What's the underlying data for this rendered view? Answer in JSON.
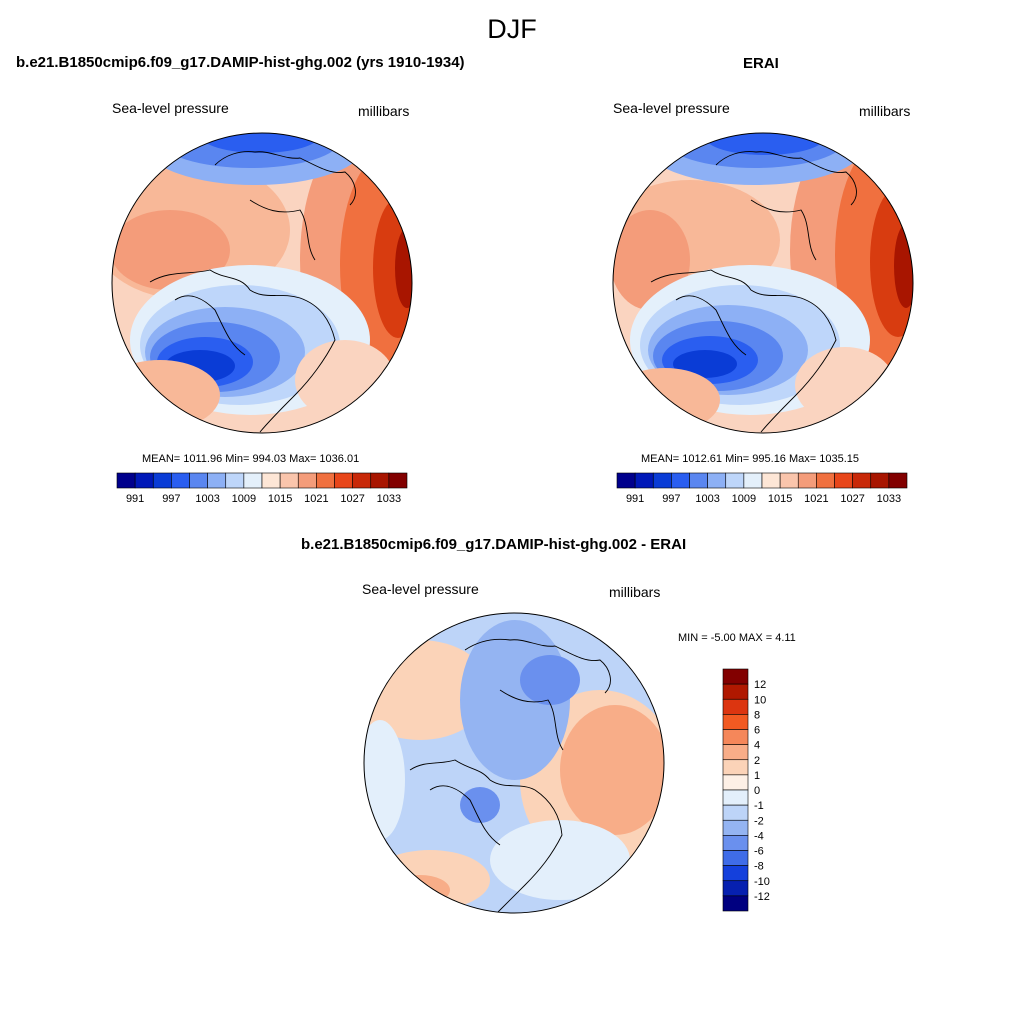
{
  "figure": {
    "title": "DJF",
    "left_panel": {
      "title": "b.e21.B1850cmip6.f09_g17.DAMIP-hist-ghg.002 (yrs 1910-1934)",
      "left_label": "Sea-level pressure",
      "right_label": "millibars",
      "stats": "MEAN= 1011.96  Min= 994.03  Max= 1036.01"
    },
    "right_panel": {
      "title": "ERAI",
      "left_label": "Sea-level pressure",
      "right_label": "millibars",
      "stats": "MEAN= 1012.61  Min= 995.16  Max= 1035.15"
    },
    "diff_panel": {
      "title": "b.e21.B1850cmip6.f09_g17.DAMIP-hist-ghg.002 - ERAI",
      "left_label": "Sea-level pressure",
      "right_label": "millibars",
      "stats": "MIN =  -5.00 MAX =   4.11"
    }
  },
  "chart_data": [
    {
      "type": "heatmap",
      "projection": "north-polar-stereographic",
      "variable": "Sea-level pressure",
      "units": "millibars",
      "mean": 1011.96,
      "min": 994.03,
      "max": 1036.01,
      "colorbar": {
        "orientation": "horizontal",
        "colors": [
          "#00008c",
          "#0018b8",
          "#0a3cd6",
          "#2a5ef0",
          "#5a86f0",
          "#8db0f5",
          "#bed6fa",
          "#e4f0fb",
          "#fde6d6",
          "#fac5ac",
          "#f49c7a",
          "#f0703f",
          "#e8461a",
          "#c82808",
          "#a81500",
          "#820000"
        ],
        "tick_labels": [
          "991",
          "997",
          "1003",
          "1009",
          "1015",
          "1021",
          "1027",
          "1033"
        ]
      }
    },
    {
      "type": "heatmap",
      "projection": "north-polar-stereographic",
      "variable": "Sea-level pressure",
      "units": "millibars",
      "mean": 1012.61,
      "min": 995.16,
      "max": 1035.15,
      "colorbar": {
        "orientation": "horizontal",
        "colors": [
          "#00008c",
          "#0018b8",
          "#0a3cd6",
          "#2a5ef0",
          "#5a86f0",
          "#8db0f5",
          "#bed6fa",
          "#e4f0fb",
          "#fde6d6",
          "#fac5ac",
          "#f49c7a",
          "#f0703f",
          "#e8461a",
          "#c82808",
          "#a81500",
          "#820000"
        ],
        "tick_labels": [
          "991",
          "997",
          "1003",
          "1009",
          "1015",
          "1021",
          "1027",
          "1033"
        ]
      }
    },
    {
      "type": "heatmap",
      "projection": "north-polar-stereographic",
      "variable": "Sea-level pressure",
      "units": "millibars",
      "min": -5.0,
      "max": 4.11,
      "colorbar": {
        "orientation": "vertical",
        "colors_top_to_bottom": [
          "#820000",
          "#b01800",
          "#dc3510",
          "#f25a22",
          "#f5875a",
          "#f8ad88",
          "#fbd3b8",
          "#fdf0e6",
          "#e3effb",
          "#bdd4f8",
          "#94b4f2",
          "#6a90ee",
          "#3f6ce8",
          "#1440dc",
          "#0620b0",
          "#000080"
        ],
        "tick_labels_top_to_bottom": [
          "12",
          "10",
          "8",
          "6",
          "4",
          "2",
          "1",
          "0",
          "-1",
          "-2",
          "-4",
          "-6",
          "-8",
          "-10",
          "-12"
        ]
      }
    }
  ]
}
